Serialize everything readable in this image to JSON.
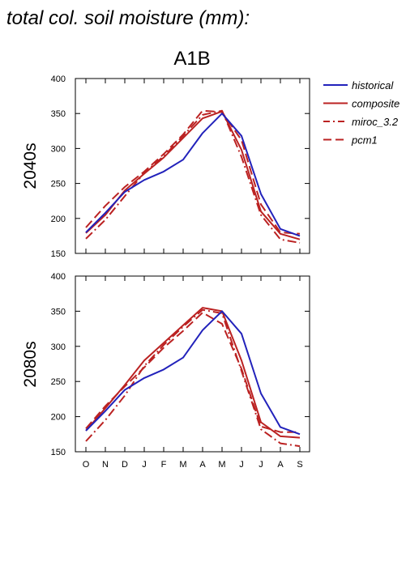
{
  "page_title": "total col. soil moisture (mm):",
  "scenario": "A1B",
  "colors": {
    "historical": "#2222bb",
    "model": "#bb2222"
  },
  "chart_data": [
    {
      "type": "line",
      "row_label": "2040s",
      "categories": [
        "O",
        "N",
        "D",
        "J",
        "F",
        "M",
        "A",
        "M",
        "J",
        "J",
        "A",
        "S"
      ],
      "ylim": [
        150,
        400
      ],
      "yticks": [
        150,
        200,
        250,
        300,
        350,
        400
      ],
      "legend_position": "right",
      "series": [
        {
          "name": "historical",
          "color": "#2222bb",
          "style": "solid",
          "values": [
            180,
            208,
            238,
            255,
            267,
            284,
            322,
            350,
            318,
            235,
            185,
            175
          ]
        },
        {
          "name": "composite",
          "color": "#bb2222",
          "style": "solid",
          "values": [
            179,
            205,
            240,
            264,
            287,
            315,
            343,
            353,
            298,
            210,
            178,
            170
          ]
        },
        {
          "name": "miroc_3.2",
          "color": "#bb2222",
          "style": "dashdot",
          "values": [
            171,
            198,
            232,
            265,
            289,
            318,
            348,
            354,
            288,
            205,
            170,
            165
          ]
        },
        {
          "name": "pcm1",
          "color": "#bb2222",
          "style": "dashed",
          "values": [
            187,
            218,
            245,
            267,
            292,
            320,
            354,
            352,
            312,
            220,
            180,
            178
          ]
        }
      ]
    },
    {
      "type": "line",
      "row_label": "2080s",
      "categories": [
        "O",
        "N",
        "D",
        "J",
        "F",
        "M",
        "A",
        "M",
        "J",
        "J",
        "A",
        "S"
      ],
      "ylim": [
        150,
        400
      ],
      "yticks": [
        150,
        200,
        250,
        300,
        350,
        400
      ],
      "legend_position": "right",
      "series": [
        {
          "name": "historical",
          "color": "#2222bb",
          "style": "solid",
          "values": [
            180,
            208,
            238,
            255,
            267,
            284,
            323,
            350,
            318,
            233,
            185,
            175
          ]
        },
        {
          "name": "composite",
          "color": "#bb2222",
          "style": "solid",
          "values": [
            180,
            212,
            245,
            280,
            305,
            330,
            355,
            350,
            280,
            192,
            172,
            170
          ]
        },
        {
          "name": "miroc_3.2",
          "color": "#bb2222",
          "style": "dashdot",
          "values": [
            165,
            195,
            230,
            272,
            302,
            328,
            352,
            347,
            265,
            182,
            162,
            158
          ]
        },
        {
          "name": "pcm1",
          "color": "#bb2222",
          "style": "dashed",
          "values": [
            183,
            215,
            243,
            270,
            298,
            322,
            348,
            332,
            268,
            186,
            178,
            178
          ]
        }
      ]
    }
  ]
}
